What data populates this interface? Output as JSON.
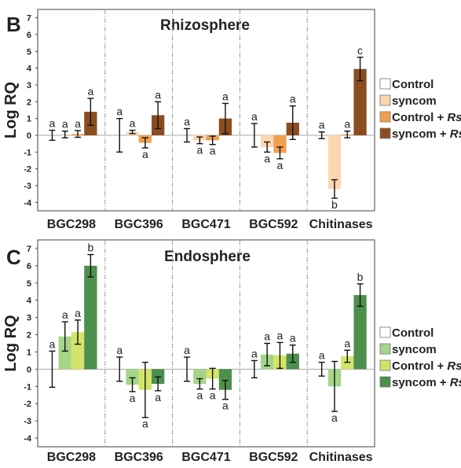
{
  "chart_data": [
    {
      "type": "bar",
      "panel": "B",
      "title": "Rhizosphere",
      "ylabel": "Log RQ",
      "ylim": [
        -4.5,
        7.5
      ],
      "yticks": [
        "7",
        "6",
        "5",
        "4",
        "3",
        "2",
        "1",
        "0",
        "-1",
        "-2",
        "-3",
        "-4"
      ],
      "categories": [
        "BGC298",
        "BGC396",
        "BGC471",
        "BGC592",
        "Chitinases"
      ],
      "legend": [
        {
          "label": "Control",
          "suffix": "",
          "color": "#ffffff"
        },
        {
          "label": "syncom",
          "suffix": "",
          "color": "#fdd6b0"
        },
        {
          "label": "Control + ",
          "suffix": "Rs",
          "color": "#f0a050"
        },
        {
          "label": "syncom + ",
          "suffix": "Rs",
          "color": "#8b4d1f"
        }
      ],
      "series": [
        {
          "name": "Control",
          "color": "#ffffff",
          "values": [
            0,
            0,
            0,
            0,
            0
          ],
          "errors": [
            0.3,
            1.0,
            0.4,
            0.7,
            0.2
          ],
          "labels": [
            "a",
            "a",
            "a",
            "a",
            "a"
          ]
        },
        {
          "name": "syncom",
          "color": "#fdd6b0",
          "values": [
            0.05,
            0.2,
            -0.3,
            -0.7,
            -3.2
          ],
          "errors": [
            0.2,
            0.1,
            0.2,
            0.3,
            0.55
          ],
          "labels": [
            "a",
            "a",
            "a",
            "a",
            "b"
          ]
        },
        {
          "name": "Control + Rs",
          "color": "#f0a050",
          "values": [
            0.08,
            -0.45,
            -0.3,
            -1.05,
            0.05
          ],
          "errors": [
            0.2,
            0.3,
            0.25,
            0.35,
            0.2
          ],
          "labels": [
            "a",
            "a",
            "a",
            "a",
            "a"
          ]
        },
        {
          "name": "syncom + Rs",
          "color": "#8b4d1f",
          "values": [
            1.4,
            1.2,
            1.0,
            0.75,
            3.95
          ],
          "errors": [
            0.8,
            0.8,
            0.9,
            1.0,
            0.7
          ],
          "labels": [
            "a",
            "a",
            "a",
            "a",
            "c"
          ]
        }
      ]
    },
    {
      "type": "bar",
      "panel": "C",
      "title": "Endosphere",
      "ylabel": "Log RQ",
      "ylim": [
        -4.5,
        7.5
      ],
      "yticks": [
        "7",
        "6",
        "5",
        "4",
        "3",
        "2",
        "1",
        "0",
        "-1",
        "-2",
        "-3",
        "-4"
      ],
      "categories": [
        "BGC298",
        "BGC396",
        "BGC471",
        "BGC592",
        "Chitinases"
      ],
      "legend": [
        {
          "label": "Control",
          "suffix": "",
          "color": "#ffffff"
        },
        {
          "label": "syncom",
          "suffix": "",
          "color": "#a6d58a"
        },
        {
          "label": "Control + ",
          "suffix": "Rs",
          "color": "#d4e46a"
        },
        {
          "label": "syncom + ",
          "suffix": "Rs",
          "color": "#4d8f4d"
        }
      ],
      "series": [
        {
          "name": "Control",
          "color": "#ffffff",
          "values": [
            0,
            0,
            0,
            0,
            0
          ],
          "errors": [
            1.05,
            0.7,
            0.7,
            0.5,
            0.4
          ],
          "labels": [
            "a",
            "a",
            "a",
            "a",
            "a"
          ]
        },
        {
          "name": "syncom",
          "color": "#a6d58a",
          "values": [
            1.9,
            -0.9,
            -0.85,
            0.85,
            -1.0
          ],
          "errors": [
            0.85,
            0.4,
            0.3,
            0.65,
            1.45
          ],
          "labels": [
            "a",
            "a",
            "a",
            "a",
            "a"
          ]
        },
        {
          "name": "Control + Rs",
          "color": "#d4e46a",
          "values": [
            2.15,
            -1.2,
            -0.55,
            0.8,
            0.75
          ],
          "errors": [
            0.7,
            1.6,
            0.6,
            0.75,
            0.35
          ],
          "labels": [
            "a",
            "a",
            "a",
            "a",
            "a"
          ]
        },
        {
          "name": "syncom + Rs",
          "color": "#4d8f4d",
          "values": [
            6.0,
            -0.85,
            -1.2,
            0.9,
            4.3
          ],
          "errors": [
            0.65,
            0.4,
            0.55,
            0.5,
            0.65
          ],
          "labels": [
            "b",
            "a",
            "a",
            "a",
            "b"
          ]
        }
      ]
    }
  ]
}
